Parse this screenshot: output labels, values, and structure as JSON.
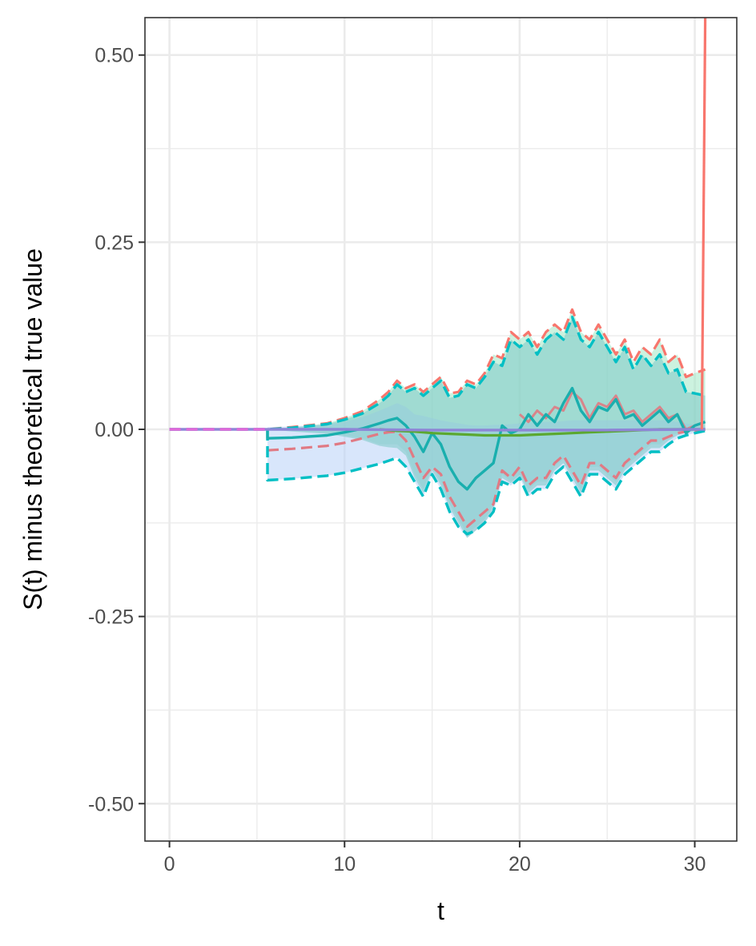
{
  "chart_data": {
    "type": "line",
    "title": "",
    "xlabel": "t",
    "ylabel": "S(t) minus theoretical true value",
    "xlim": [
      -1.4,
      32.4
    ],
    "ylim": [
      -0.55,
      0.55
    ],
    "x_ticks": [
      0,
      10,
      20,
      30
    ],
    "y_ticks": [
      -0.5,
      -0.25,
      0.0,
      0.25,
      0.5
    ],
    "x_tick_labels": [
      "0",
      "10",
      "20",
      "30"
    ],
    "y_tick_labels": [
      "-0.50",
      "-0.25",
      "0.00",
      "0.25",
      "0.50"
    ],
    "grid": true,
    "legend": "none",
    "bands": [
      {
        "fill": "#A3E8C4",
        "x": [
          0,
          5.6,
          7,
          9,
          10,
          11,
          12,
          12.5,
          13,
          13.5,
          14,
          14.5,
          15,
          15.5,
          16,
          16.5,
          17,
          17.5,
          18,
          18.5,
          19,
          19.5,
          20,
          20.5,
          21,
          21.5,
          22,
          22.5,
          23,
          23.5,
          24,
          24.5,
          25,
          25.5,
          26,
          26.5,
          27,
          27.5,
          28,
          28.5,
          29,
          29.5,
          30,
          30.6
        ],
        "upper": [
          0,
          0,
          0.003,
          0.008,
          0.015,
          0.024,
          0.04,
          0.05,
          0.065,
          0.055,
          0.06,
          0.05,
          0.06,
          0.07,
          0.048,
          0.05,
          0.065,
          0.06,
          0.075,
          0.1,
          0.095,
          0.13,
          0.12,
          0.13,
          0.11,
          0.13,
          0.14,
          0.13,
          0.16,
          0.13,
          0.12,
          0.14,
          0.12,
          0.1,
          0.12,
          0.09,
          0.11,
          0.1,
          0.12,
          0.09,
          0.1,
          0.07,
          0.075,
          0.08
        ],
        "lower": [
          0,
          0,
          -0.002,
          -0.005,
          -0.008,
          -0.012,
          -0.02,
          -0.02,
          -0.02,
          -0.03,
          -0.06,
          -0.08,
          -0.05,
          -0.07,
          -0.1,
          -0.12,
          -0.14,
          -0.13,
          -0.12,
          -0.1,
          -0.06,
          -0.07,
          -0.06,
          -0.08,
          -0.07,
          -0.07,
          -0.05,
          -0.04,
          -0.06,
          -0.08,
          -0.05,
          -0.05,
          -0.06,
          -0.07,
          -0.05,
          -0.04,
          -0.03,
          -0.02,
          -0.02,
          -0.01,
          -0.005,
          -0.005,
          -0.003,
          0
        ]
      },
      {
        "fill": "#B8D2F8",
        "x": [
          5.6,
          7,
          9,
          10,
          11,
          12,
          12.5,
          13,
          13.5,
          14,
          14.5,
          15,
          15.5,
          16,
          16.5,
          17,
          17.5,
          18,
          18.5,
          19,
          19.5,
          20,
          20.5,
          21,
          21.5,
          22,
          22.5,
          23,
          23.5,
          24,
          24.5,
          25,
          25.5,
          26,
          26.5,
          27,
          27.5,
          28,
          28.5,
          29,
          29.5,
          30,
          30.6
        ],
        "upper": [
          0.003,
          0.004,
          0.006,
          0.01,
          0.016,
          0.025,
          0.03,
          0.035,
          0.03,
          0.02,
          0.018,
          0.015,
          0.012,
          0.01,
          0.008,
          0.006,
          0.005,
          0.005,
          0.006,
          0.006,
          0.007,
          0.008,
          0.009,
          0.01,
          0.01,
          0.01,
          0.011,
          0.012,
          0.012,
          0.012,
          0.012,
          0.012,
          0.012,
          0.012,
          0.012,
          0.012,
          0.012,
          0.012,
          0.012,
          0.01,
          0.008,
          0.006,
          0.004
        ],
        "lower": [
          -0.068,
          -0.066,
          -0.062,
          -0.058,
          -0.052,
          -0.046,
          -0.042,
          -0.038,
          -0.05,
          -0.07,
          -0.09,
          -0.06,
          -0.08,
          -0.11,
          -0.13,
          -0.145,
          -0.135,
          -0.125,
          -0.11,
          -0.07,
          -0.075,
          -0.065,
          -0.09,
          -0.08,
          -0.08,
          -0.06,
          -0.05,
          -0.07,
          -0.09,
          -0.06,
          -0.06,
          -0.07,
          -0.08,
          -0.06,
          -0.05,
          -0.04,
          -0.03,
          -0.03,
          -0.02,
          -0.012,
          -0.008,
          -0.005,
          -0.002
        ]
      },
      {
        "fill": "#7BC8C6",
        "x": [
          5.6,
          7,
          9,
          10,
          11,
          12,
          12.5,
          13,
          13.5,
          14,
          14.5,
          15,
          15.5,
          16,
          16.5,
          17,
          17.5,
          18,
          18.5,
          19,
          19.5,
          20,
          20.5,
          21,
          21.5,
          22,
          22.5,
          23,
          23.5,
          24,
          24.5,
          25,
          25.5,
          26,
          26.5,
          27,
          27.5,
          28,
          28.5,
          29,
          29.5,
          30,
          30.6
        ],
        "upper": [
          0,
          0.002,
          0.007,
          0.013,
          0.021,
          0.035,
          0.045,
          0.06,
          0.05,
          0.055,
          0.045,
          0.055,
          0.065,
          0.042,
          0.045,
          0.06,
          0.055,
          0.07,
          0.09,
          0.085,
          0.12,
          0.11,
          0.12,
          0.1,
          0.12,
          0.13,
          0.12,
          0.15,
          0.12,
          0.11,
          0.13,
          0.11,
          0.09,
          0.11,
          0.08,
          0.1,
          0.085,
          0.1,
          0.075,
          0.08,
          0.05,
          0.048,
          0.045
        ],
        "lower": [
          0,
          -0.003,
          -0.006,
          -0.01,
          -0.014,
          -0.022,
          -0.024,
          -0.025,
          -0.035,
          -0.065,
          -0.085,
          -0.055,
          -0.075,
          -0.105,
          -0.125,
          -0.145,
          -0.135,
          -0.125,
          -0.105,
          -0.065,
          -0.072,
          -0.062,
          -0.085,
          -0.075,
          -0.075,
          -0.055,
          -0.045,
          -0.065,
          -0.085,
          -0.055,
          -0.055,
          -0.065,
          -0.075,
          -0.055,
          -0.045,
          -0.035,
          -0.025,
          -0.025,
          -0.015,
          -0.008,
          -0.004,
          -0.002,
          0
        ]
      }
    ],
    "series": [
      {
        "color": "#F8766D",
        "dash": true,
        "width": 3.2,
        "x": [
          0,
          5.6,
          7,
          9,
          10,
          11,
          12,
          12.5,
          13,
          13.5,
          14,
          14.5,
          15,
          15.5,
          16,
          16.5,
          17,
          17.5,
          18,
          18.5,
          19,
          19.5,
          20,
          20.5,
          21,
          21.5,
          22,
          22.5,
          23,
          23.5,
          24,
          24.5,
          25,
          25.5,
          26,
          26.5,
          27,
          27.5,
          28,
          28.5,
          29,
          29.5,
          30,
          30.6
        ],
        "y": [
          0,
          0,
          0.003,
          0.008,
          0.015,
          0.024,
          0.04,
          0.05,
          0.065,
          0.055,
          0.06,
          0.05,
          0.06,
          0.07,
          0.048,
          0.05,
          0.065,
          0.06,
          0.075,
          0.1,
          0.095,
          0.13,
          0.12,
          0.13,
          0.11,
          0.13,
          0.14,
          0.13,
          0.16,
          0.13,
          0.12,
          0.14,
          0.12,
          0.1,
          0.12,
          0.09,
          0.11,
          0.1,
          0.12,
          0.09,
          0.1,
          0.07,
          0.075,
          0.08
        ]
      },
      {
        "color": "#E07A84",
        "dash": true,
        "width": 3.2,
        "x": [
          5.6,
          7,
          9,
          10,
          11,
          12,
          12.5,
          13,
          13.5,
          14,
          14.5,
          15,
          15.5,
          16,
          16.5,
          17,
          17.5,
          18,
          18.5,
          19,
          19.5,
          20,
          20.5,
          21,
          21.5,
          22,
          22.5,
          23,
          23.5,
          24,
          24.5,
          25,
          25.5,
          26,
          26.5,
          27,
          27.5,
          28,
          28.5,
          29,
          29.5,
          30,
          30.6
        ],
        "y": [
          -0.028,
          -0.026,
          -0.022,
          -0.018,
          -0.012,
          -0.006,
          -0.004,
          -0.003,
          -0.015,
          -0.04,
          -0.065,
          -0.05,
          -0.06,
          -0.09,
          -0.11,
          -0.13,
          -0.12,
          -0.11,
          -0.1,
          -0.055,
          -0.065,
          -0.05,
          -0.075,
          -0.065,
          -0.065,
          -0.045,
          -0.035,
          -0.055,
          -0.075,
          -0.045,
          -0.045,
          -0.055,
          -0.065,
          -0.045,
          -0.035,
          -0.025,
          -0.015,
          -0.015,
          -0.01,
          -0.005,
          -0.003,
          -0.002,
          0
        ]
      },
      {
        "color": "#00BFC4",
        "dash": true,
        "width": 3.4,
        "x": [
          0,
          5.6,
          7,
          9,
          10,
          11,
          12,
          12.5,
          13,
          13.5,
          14,
          14.5,
          15,
          15.5,
          16,
          16.5,
          17,
          17.5,
          18,
          18.5,
          19,
          19.5,
          20,
          20.5,
          21,
          21.5,
          22,
          22.5,
          23,
          23.5,
          24,
          24.5,
          25,
          25.5,
          26,
          26.5,
          27,
          27.5,
          28,
          28.5,
          29,
          29.5,
          30,
          30.6
        ],
        "y": [
          0,
          0.0,
          0.002,
          0.007,
          0.013,
          0.021,
          0.035,
          0.045,
          0.06,
          0.05,
          0.055,
          0.045,
          0.055,
          0.065,
          0.042,
          0.045,
          0.06,
          0.055,
          0.07,
          0.09,
          0.085,
          0.12,
          0.11,
          0.12,
          0.1,
          0.12,
          0.13,
          0.12,
          0.15,
          0.12,
          0.11,
          0.13,
          0.11,
          0.09,
          0.11,
          0.08,
          0.1,
          0.085,
          0.1,
          0.075,
          0.08,
          0.05,
          0.048,
          0.045
        ]
      },
      {
        "color": "#00BFC4",
        "dash": true,
        "width": 3.4,
        "x": [
          5.6,
          5.6,
          7,
          9,
          10,
          11,
          12,
          12.5,
          13,
          13.5,
          14,
          14.5,
          15,
          15.5,
          16,
          16.5,
          17,
          17.5,
          18,
          18.5,
          19,
          19.5,
          20,
          20.5,
          21,
          21.5,
          22,
          22.5,
          23,
          23.5,
          24,
          24.5,
          25,
          25.5,
          26,
          26.5,
          27,
          27.5,
          28,
          28.5,
          29,
          29.5,
          30,
          30.6
        ],
        "y": [
          0,
          -0.068,
          -0.066,
          -0.062,
          -0.058,
          -0.052,
          -0.046,
          -0.042,
          -0.038,
          -0.05,
          -0.07,
          -0.09,
          -0.06,
          -0.08,
          -0.11,
          -0.13,
          -0.14,
          -0.135,
          -0.125,
          -0.11,
          -0.07,
          -0.075,
          -0.065,
          -0.09,
          -0.08,
          -0.08,
          -0.06,
          -0.05,
          -0.07,
          -0.09,
          -0.06,
          -0.06,
          -0.07,
          -0.08,
          -0.06,
          -0.05,
          -0.04,
          -0.03,
          -0.03,
          -0.02,
          -0.012,
          -0.008,
          -0.005,
          -0.002
        ]
      },
      {
        "color": "#D9848A",
        "dash": false,
        "width": 3,
        "x": [
          20,
          20.5,
          21,
          21.5,
          22,
          22.5,
          23,
          23.5,
          24,
          24.5,
          25,
          25.5,
          26,
          26.5,
          27,
          27.5,
          28,
          28.5,
          29,
          29.5,
          30,
          30.6
        ],
        "y": [
          0.02,
          0.01,
          0.025,
          0.015,
          0.03,
          0.025,
          0.05,
          0.04,
          0.015,
          0.035,
          0.03,
          0.045,
          0.02,
          0.025,
          0.01,
          0.02,
          0.03,
          0.015,
          0.02,
          0.0,
          0.005,
          0.01
        ]
      },
      {
        "color": "#1AAFAE",
        "dash": false,
        "width": 3.4,
        "x": [
          5.6,
          5.6,
          7,
          9,
          10,
          11,
          12,
          12.5,
          13,
          13.5,
          14,
          14.5,
          15,
          15.5,
          16,
          16.5,
          17,
          17.5,
          18,
          18.5,
          19,
          19.5,
          20,
          20.5,
          21,
          21.5,
          22,
          22.5,
          23,
          23.5,
          24,
          24.5,
          25,
          25.5,
          26,
          26.5,
          27,
          27.5,
          28,
          28.5,
          29,
          29.5,
          30,
          30.6
        ],
        "y": [
          0,
          -0.012,
          -0.011,
          -0.008,
          -0.004,
          0.001,
          0.008,
          0.012,
          0.015,
          0.005,
          -0.01,
          -0.03,
          -0.005,
          -0.02,
          -0.05,
          -0.07,
          -0.08,
          -0.065,
          -0.055,
          -0.045,
          0.005,
          -0.005,
          0.0,
          0.02,
          0.005,
          0.02,
          0.01,
          0.035,
          0.055,
          0.025,
          0.01,
          0.03,
          0.025,
          0.04,
          0.015,
          0.02,
          0.005,
          0.015,
          0.025,
          0.01,
          0.02,
          -0.005,
          0.005,
          0.01
        ]
      },
      {
        "color": "#5BA830",
        "dash": false,
        "width": 3.2,
        "x": [
          12,
          13,
          14,
          15,
          16,
          17,
          18,
          19,
          20,
          21,
          22,
          23,
          24,
          25,
          26,
          27,
          28,
          29,
          30,
          30.6
        ],
        "y": [
          0,
          -0.002,
          -0.003,
          -0.005,
          -0.006,
          -0.007,
          -0.008,
          -0.008,
          -0.008,
          -0.007,
          -0.006,
          -0.005,
          -0.004,
          -0.003,
          -0.002,
          -0.001,
          0,
          0,
          0,
          0
        ]
      },
      {
        "color": "#8E86D6",
        "dash": false,
        "width": 3.4,
        "x": [
          0,
          5.6,
          10,
          15,
          20,
          25,
          30,
          30.6
        ],
        "y": [
          0,
          0,
          0.0,
          -0.001,
          -0.001,
          -0.001,
          0.0,
          0.0
        ]
      },
      {
        "color": "#E16ADA",
        "dash": true,
        "width": 3.4,
        "x": [
          0,
          5.6
        ],
        "y": [
          0,
          0
        ]
      },
      {
        "color": "#F8766D",
        "dash": false,
        "width": 3.2,
        "x": [
          30.4,
          30.4,
          30.6
        ],
        "y": [
          0,
          0.0,
          0.55
        ]
      }
    ]
  }
}
